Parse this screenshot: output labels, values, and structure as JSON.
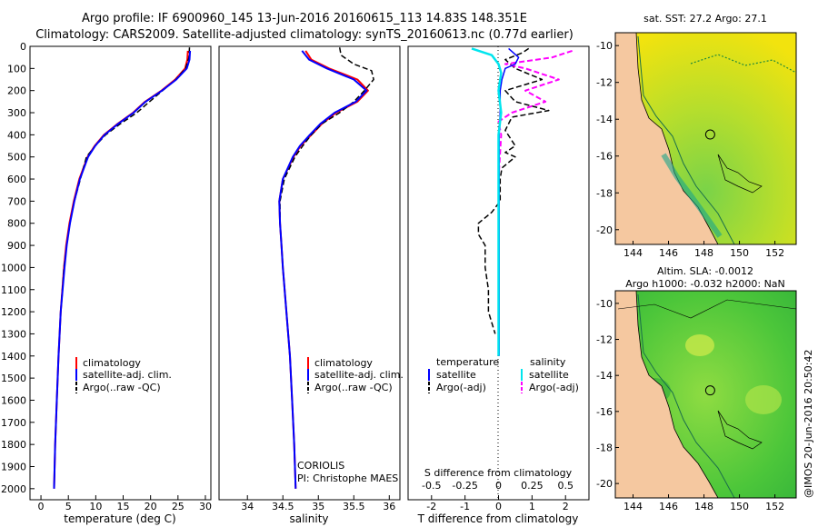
{
  "header": {
    "line1": "Argo profile: IF 6900960_145 13-Jun-2016 20160615_113 14.83S 148.351E",
    "line2": "Climatology: CARS2009. Satellite-adjusted climatology: synTS_20160613.nc (0.77d earlier)"
  },
  "colors": {
    "climatology": "#ff0000",
    "satellite": "#0000ff",
    "argo": "#000000",
    "temp_sat": "#0000ff",
    "sal_sat": "#00e5ee",
    "sal_argo": "#ff00ff",
    "land": "#f5c8a0"
  },
  "chart_data": [
    {
      "type": "line",
      "xlabel": "temperature (deg C)",
      "xticks": [
        "0",
        "5",
        "10",
        "15",
        "20",
        "25",
        "30"
      ],
      "xlim": [
        -2,
        31
      ],
      "ylim": [
        0,
        2050
      ],
      "yticks": [
        "0",
        "100",
        "200",
        "300",
        "400",
        "500",
        "600",
        "700",
        "800",
        "900",
        "1000",
        "1100",
        "1200",
        "1300",
        "1400",
        "1500",
        "1600",
        "1700",
        "1800",
        "1900",
        "2000"
      ],
      "legend": [
        "climatology",
        "satellite-adj. clim.",
        "Argo(..raw -QC)"
      ],
      "series": [
        {
          "name": "climatology",
          "depth": [
            20,
            60,
            100,
            150,
            200,
            250,
            300,
            350,
            400,
            450,
            500,
            600,
            700,
            800,
            900,
            1000,
            1200,
            1400,
            1600,
            1800,
            2000
          ],
          "values": [
            26.8,
            26.7,
            26.3,
            24.5,
            22.0,
            19.0,
            16.8,
            14.0,
            11.5,
            9.8,
            8.5,
            7.0,
            6.0,
            5.2,
            4.6,
            4.2,
            3.6,
            3.2,
            2.9,
            2.6,
            2.4
          ]
        },
        {
          "name": "satellite-adj. clim.",
          "depth": [
            20,
            60,
            100,
            150,
            200,
            250,
            300,
            350,
            400,
            450,
            500,
            600,
            700,
            800,
            900,
            1000,
            1200,
            1400,
            1600,
            1800,
            2000
          ],
          "values": [
            27.2,
            27.1,
            26.6,
            24.7,
            22.1,
            19.1,
            16.9,
            14.1,
            11.6,
            9.9,
            8.6,
            7.1,
            6.1,
            5.3,
            4.7,
            4.3,
            3.6,
            3.2,
            2.9,
            2.6,
            2.4
          ]
        },
        {
          "name": "Argo(..raw -QC)",
          "depth": [
            5,
            50,
            100,
            150,
            200,
            250,
            300,
            350,
            400,
            450,
            500,
            600,
            700,
            800,
            900,
            1000,
            1200,
            1400,
            1600,
            1800,
            2000
          ],
          "values": [
            27.1,
            27.0,
            26.4,
            24.6,
            22.2,
            19.8,
            17.5,
            14.5,
            11.8,
            9.9,
            8.3,
            7.2,
            6.1,
            5.3,
            4.7,
            4.2,
            3.6,
            3.2,
            2.9,
            2.6,
            2.4
          ]
        }
      ]
    },
    {
      "type": "line",
      "xlabel": "salinity",
      "xticks": [
        "34",
        "34.5",
        "35",
        "35.5",
        "36"
      ],
      "xlim": [
        33.6,
        36.15
      ],
      "ylim": [
        0,
        2050
      ],
      "legend": [
        "climatology",
        "satellite-adj. clim.",
        "Argo(..raw -QC)"
      ],
      "annotation": [
        "CORIOLIS",
        "PI: Christophe MAES"
      ],
      "series": [
        {
          "name": "climatology",
          "depth": [
            20,
            60,
            100,
            150,
            200,
            250,
            300,
            350,
            400,
            450,
            500,
            600,
            700,
            800,
            900,
            1000,
            1200,
            1400,
            1600,
            1800,
            2000
          ],
          "values": [
            34.82,
            34.9,
            35.15,
            35.55,
            35.7,
            35.55,
            35.25,
            35.05,
            34.9,
            34.75,
            34.65,
            34.5,
            34.45,
            34.46,
            34.48,
            34.5,
            34.55,
            34.6,
            34.63,
            34.66,
            34.68
          ]
        },
        {
          "name": "satellite-adj. clim.",
          "depth": [
            20,
            60,
            100,
            150,
            200,
            250,
            300,
            350,
            400,
            450,
            500,
            600,
            700,
            800,
            900,
            1000,
            1200,
            1400,
            1600,
            1800,
            2000
          ],
          "values": [
            34.77,
            34.87,
            35.12,
            35.5,
            35.68,
            35.53,
            35.23,
            35.03,
            34.88,
            34.74,
            34.64,
            34.5,
            34.45,
            34.46,
            34.48,
            34.5,
            34.55,
            34.6,
            34.63,
            34.66,
            34.68
          ]
        },
        {
          "name": "Argo(..raw -QC)",
          "depth": [
            5,
            40,
            80,
            110,
            150,
            200,
            250,
            300,
            350,
            400,
            450,
            500,
            600,
            700,
            800,
            900,
            1000,
            1200,
            1400,
            1600,
            1800,
            2000
          ],
          "values": [
            35.3,
            35.32,
            35.5,
            35.75,
            35.78,
            35.65,
            35.5,
            35.3,
            35.05,
            34.9,
            34.78,
            34.67,
            34.52,
            34.46,
            34.46,
            34.48,
            34.5,
            34.55,
            34.6,
            34.63,
            34.66,
            34.68
          ]
        }
      ]
    },
    {
      "type": "line",
      "xlabel_bottom": "T difference from climatology",
      "xlabel_top": "S difference from climatology",
      "xticks_T": [
        "-2",
        "-1",
        "0",
        "1",
        "2"
      ],
      "xticks_S": [
        "-0.5",
        "-0.25",
        "0",
        "0.25",
        "0.5"
      ],
      "xlim_T": [
        -2.7,
        2.7
      ],
      "ylim": [
        0,
        2050
      ],
      "legend_headers": [
        "temperature",
        "salinity"
      ],
      "legend": [
        "satellite",
        "Argo(-adj)",
        "satellite",
        "Argo(-adj)"
      ],
      "series": [
        {
          "name": "satellite",
          "quantity": "temperature",
          "depth": [
            10,
            50,
            80,
            100,
            150,
            200,
            250,
            300,
            400,
            500,
            600,
            800,
            1000,
            1200,
            1400
          ],
          "values": [
            0.3,
            0.6,
            0.5,
            0.2,
            0.1,
            0.05,
            0.05,
            0.05,
            0.02,
            0.02,
            0.02,
            0.02,
            0.02,
            0.02,
            0.02
          ]
        },
        {
          "name": "Argo(-adj)",
          "quantity": "temperature",
          "depth": [
            10,
            30,
            60,
            100,
            150,
            200,
            250,
            290,
            320,
            380,
            450,
            480,
            500,
            550,
            600,
            700,
            750,
            800,
            850,
            900,
            1000,
            1100,
            1200,
            1300
          ],
          "values": [
            0.9,
            0.7,
            0.2,
            0.5,
            1.3,
            0.2,
            0.5,
            1.5,
            0.4,
            0.2,
            0.5,
            0.2,
            0.5,
            0.1,
            0.05,
            0.05,
            -0.2,
            -0.6,
            -0.6,
            -0.4,
            -0.4,
            -0.3,
            -0.3,
            -0.1
          ]
        },
        {
          "name": "satellite",
          "quantity": "salinity",
          "depth": [
            10,
            40,
            80,
            120,
            200,
            300,
            400,
            600,
            800,
            1000,
            1200,
            1400
          ],
          "values": [
            -0.2,
            -0.05,
            0.0,
            0.02,
            0.0,
            0.02,
            0.0,
            0.0,
            0.0,
            0.0,
            0.0,
            0.0
          ]
        },
        {
          "name": "Argo(-adj)",
          "quantity": "salinity",
          "depth": [
            20,
            50,
            80,
            100,
            150,
            200,
            250,
            300,
            340,
            400,
            600,
            900,
            1000
          ],
          "values": [
            0.55,
            0.4,
            0.05,
            0.2,
            0.45,
            0.2,
            0.35,
            0.1,
            0.0,
            0.02,
            0.0,
            0.0,
            0.0
          ]
        }
      ]
    }
  ],
  "maps": [
    {
      "title": "sat. SST: 27.2 Argo: 27.1",
      "xticks": [
        "144",
        "146",
        "148",
        "150",
        "152"
      ],
      "yticks": [
        "-10",
        "-12",
        "-14",
        "-16",
        "-18",
        "-20"
      ],
      "lon": [
        143,
        153.2
      ],
      "lat": [
        -20.8,
        -9.3
      ],
      "marker": [
        148.35,
        -14.83
      ]
    },
    {
      "title1": "Altim. SLA: -0.0012",
      "title2": "Argo h1000: -0.032 h2000: NaN",
      "xticks": [
        "144",
        "146",
        "148",
        "150",
        "152"
      ],
      "yticks": [
        "-10",
        "-12",
        "-14",
        "-16",
        "-18",
        "-20"
      ],
      "lon": [
        143,
        153.2
      ],
      "lat": [
        -20.8,
        -9.3
      ],
      "marker": [
        148.35,
        -14.83
      ]
    }
  ],
  "watermark": "@IMOS 20-Jun-2016 20:50:42"
}
